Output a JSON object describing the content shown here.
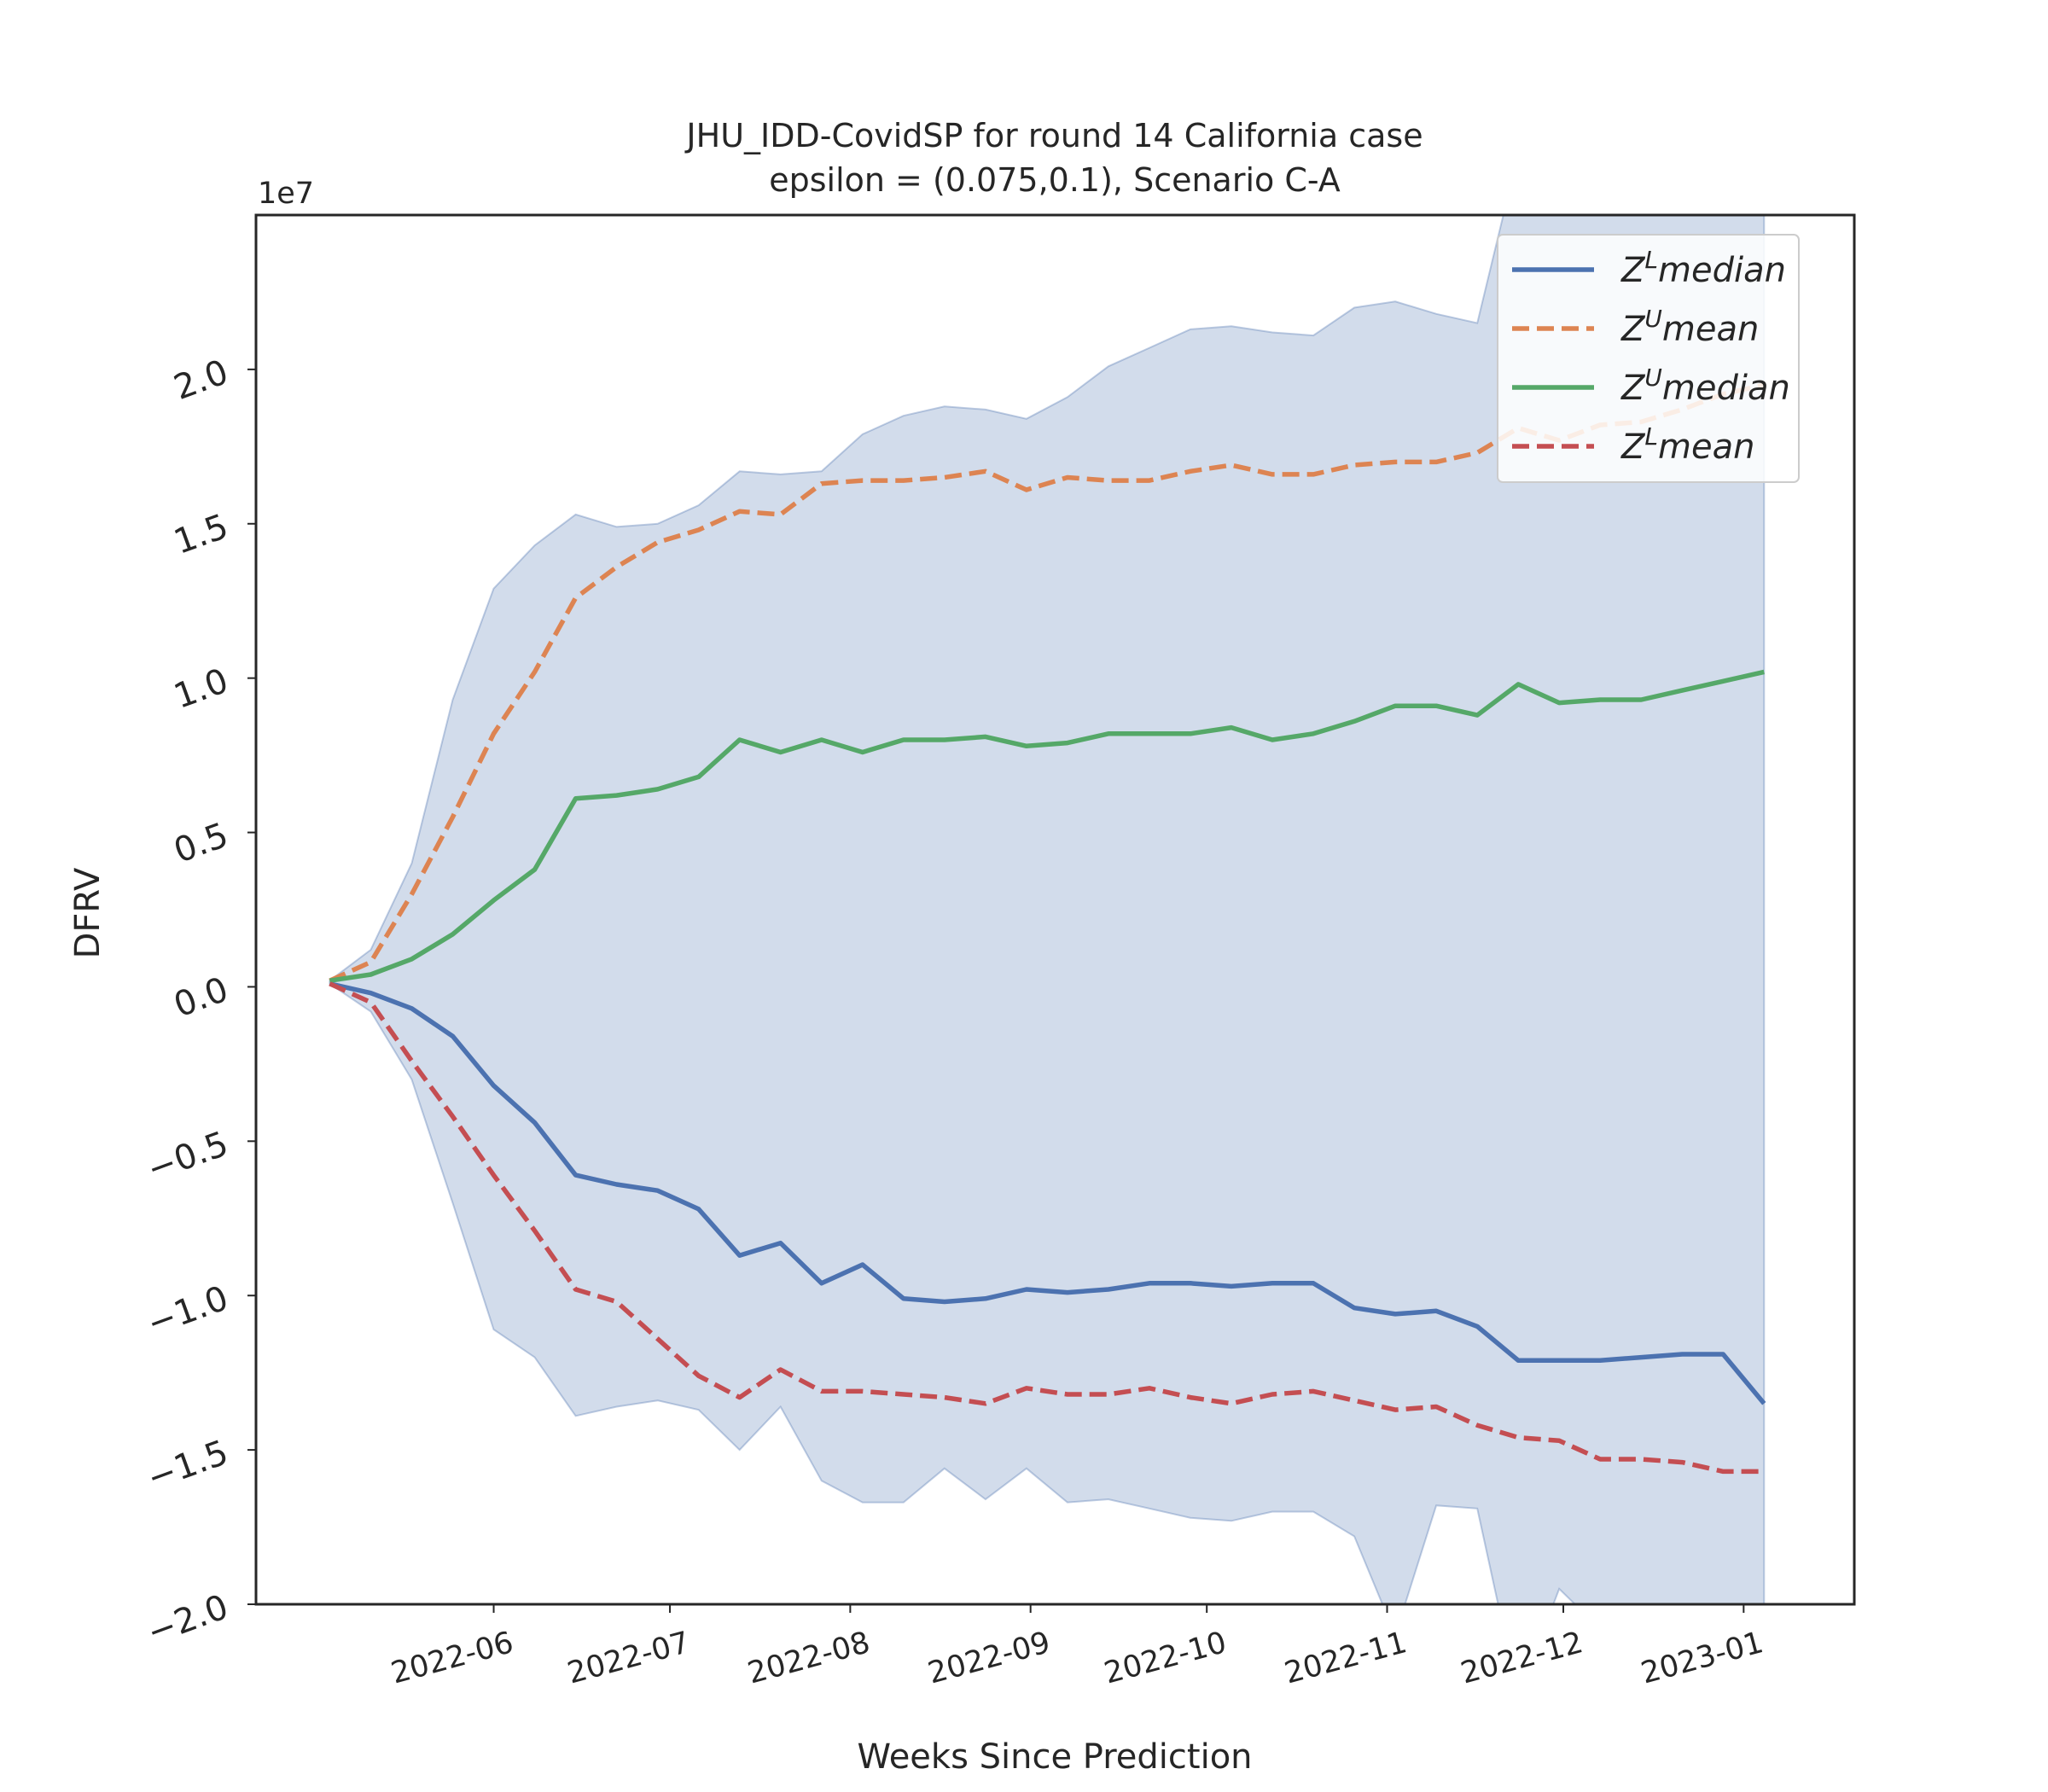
{
  "chart_data": {
    "type": "line",
    "title_lines": [
      "JHU_IDD-CovidSP for round 14 California  case",
      "epsilon = (0.075,0.1), Scenario C-A"
    ],
    "xlabel": "Weeks Since Prediction",
    "ylabel": "DFRV",
    "y_offset_label": "1e7",
    "ylim": [
      -2.0,
      2.5
    ],
    "y_ticks": [
      -2.0,
      -1.5,
      -1.0,
      -0.5,
      0.0,
      0.5,
      1.0,
      1.5,
      2.0
    ],
    "y_tick_labels": [
      "−2.0",
      "−1.5",
      "−1.0",
      "−0.5",
      "0.0",
      "0.5",
      "1.0",
      "1.5",
      "2.0"
    ],
    "x_tick_labels": [
      "2022-06",
      "2022-07",
      "2022-08",
      "2022-09",
      "2022-10",
      "2022-11",
      "2022-12",
      "2023-01"
    ],
    "x_tick_positions": [
      4,
      8.3,
      12.7,
      17.1,
      21.4,
      25.8,
      30.1,
      34.5
    ],
    "x_domain": [
      -1.8,
      37.2
    ],
    "x": [
      0,
      1,
      2,
      3,
      4,
      5,
      6,
      7,
      8,
      9,
      10,
      11,
      12,
      13,
      14,
      15,
      16,
      17,
      18,
      19,
      20,
      21,
      22,
      23,
      24,
      25,
      26,
      27,
      28,
      29,
      30,
      31,
      32,
      33,
      34,
      35
    ],
    "series": [
      {
        "name": "Z^L median",
        "legend_base": "Z",
        "legend_sup": "L",
        "legend_rest": "median",
        "color": "#4c72b0",
        "dash": "solid",
        "values": [
          0.01,
          -0.02,
          -0.07,
          -0.16,
          -0.32,
          -0.44,
          -0.61,
          -0.64,
          -0.66,
          -0.72,
          -0.87,
          -0.83,
          -0.96,
          -0.9,
          -1.01,
          -1.02,
          -1.01,
          -0.98,
          -0.99,
          -0.98,
          -0.96,
          -0.96,
          -0.97,
          -0.96,
          -0.96,
          -1.04,
          -1.06,
          -1.05,
          -1.1,
          -1.21,
          -1.21,
          -1.21,
          -1.2,
          -1.19,
          -1.19,
          -1.35
        ]
      },
      {
        "name": "Z^U mean",
        "legend_base": "Z",
        "legend_sup": "U",
        "legend_rest": "mean",
        "color": "#dd8452",
        "dash": "dashed",
        "values": [
          0.02,
          0.08,
          0.3,
          0.55,
          0.82,
          1.02,
          1.26,
          1.36,
          1.44,
          1.48,
          1.54,
          1.53,
          1.63,
          1.64,
          1.64,
          1.65,
          1.67,
          1.61,
          1.65,
          1.64,
          1.64,
          1.67,
          1.69,
          1.66,
          1.66,
          1.69,
          1.7,
          1.7,
          1.73,
          1.81,
          1.77,
          1.82,
          1.83,
          1.87,
          1.92,
          1.95
        ]
      },
      {
        "name": "Z^U median",
        "legend_base": "Z",
        "legend_sup": "U",
        "legend_rest": "median",
        "color": "#55a868",
        "dash": "solid",
        "values": [
          0.02,
          0.04,
          0.09,
          0.17,
          0.28,
          0.38,
          0.61,
          0.62,
          0.64,
          0.68,
          0.8,
          0.76,
          0.8,
          0.76,
          0.8,
          0.8,
          0.81,
          0.78,
          0.79,
          0.82,
          0.82,
          0.82,
          0.84,
          0.8,
          0.82,
          0.86,
          0.91,
          0.91,
          0.88,
          0.98,
          0.92,
          0.93,
          0.93,
          0.96,
          0.99,
          1.02
        ]
      },
      {
        "name": "Z^L mean",
        "legend_base": "Z",
        "legend_sup": "L",
        "legend_rest": "mean",
        "color": "#c44e52",
        "dash": "dashed",
        "values": [
          0.01,
          -0.05,
          -0.24,
          -0.42,
          -0.61,
          -0.79,
          -0.98,
          -1.02,
          -1.14,
          -1.26,
          -1.33,
          -1.24,
          -1.31,
          -1.31,
          -1.32,
          -1.33,
          -1.35,
          -1.3,
          -1.32,
          -1.32,
          -1.3,
          -1.33,
          -1.35,
          -1.32,
          -1.31,
          -1.34,
          -1.37,
          -1.36,
          -1.42,
          -1.46,
          -1.47,
          -1.53,
          -1.53,
          -1.54,
          -1.57,
          -1.57
        ]
      }
    ],
    "band": {
      "color": "#4c72b0",
      "upper": [
        0.02,
        0.12,
        0.4,
        0.93,
        1.29,
        1.43,
        1.53,
        1.49,
        1.5,
        1.56,
        1.67,
        1.66,
        1.67,
        1.79,
        1.85,
        1.88,
        1.87,
        1.84,
        1.91,
        2.01,
        2.07,
        2.13,
        2.14,
        2.12,
        2.11,
        2.2,
        2.22,
        2.18,
        2.15,
        2.7,
        2.6,
        2.55,
        2.6,
        2.6,
        2.7,
        3.18
      ],
      "lower": [
        0.01,
        -0.08,
        -0.3,
        -0.7,
        -1.11,
        -1.2,
        -1.39,
        -1.36,
        -1.34,
        -1.37,
        -1.5,
        -1.36,
        -1.6,
        -1.67,
        -1.67,
        -1.56,
        -1.66,
        -1.56,
        -1.67,
        -1.66,
        -1.69,
        -1.72,
        -1.73,
        -1.7,
        -1.7,
        -1.78,
        -2.1,
        -1.68,
        -1.69,
        -2.3,
        -1.95,
        -2.08,
        -2.09,
        -2.09,
        -2.72,
        -2.73
      ]
    },
    "legend_placement": "top-right",
    "grid": false
  }
}
